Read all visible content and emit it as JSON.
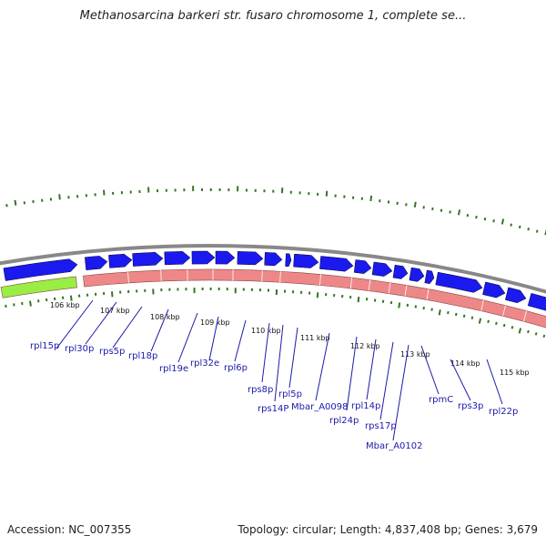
{
  "title": "Methanosarcina barkeri str. fusaro chromosome 1, complete se...",
  "footer": {
    "accession": "Accession: NC_007355",
    "summary": "Topology: circular; Length: 4,837,408 bp; Genes: 3,679"
  },
  "colors": {
    "cds": "#1a1aee",
    "gene": "#ee8888",
    "rna": "#99ee44",
    "backbone": "#888888",
    "tick": "#337722",
    "label": "#1a1aaa"
  },
  "ticks": [
    "106 kbp",
    "107 kbp",
    "108 kbp",
    "109 kbp",
    "110 kbp",
    "111 kbp",
    "112 kbp",
    "113 kbp",
    "114 kbp",
    "115 kbp"
  ],
  "genes": [
    "rpl15p",
    "rpl30p",
    "rps5p",
    "rpl18p",
    "rpl19e",
    "rpl32e",
    "rpl6p",
    "rps8p",
    "rps14P",
    "rpl5p",
    "Mbar_A0098",
    "rpl24p",
    "rpl14p",
    "rps17p",
    "Mbar_A0102",
    "rpmC",
    "rps3p",
    "rpl22p"
  ]
}
